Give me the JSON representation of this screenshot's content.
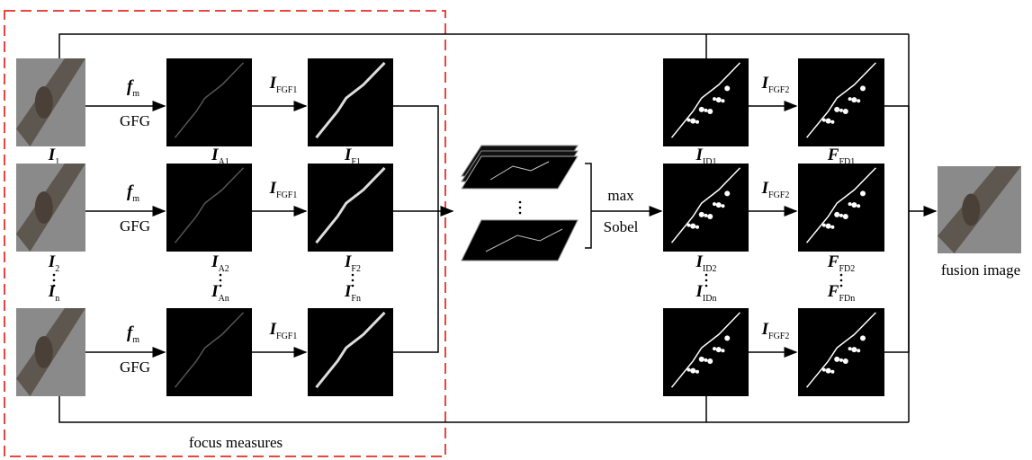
{
  "inputs": [
    {
      "main": "I",
      "sub": "1"
    },
    {
      "main": "I",
      "sub": "2"
    },
    {
      "main": "I",
      "sub": "n"
    }
  ],
  "operator": {
    "main": "f",
    "sub": "m",
    "name": "GFG"
  },
  "activity_maps": [
    {
      "main": "I",
      "sub": "A1"
    },
    {
      "main": "I",
      "sub": "A2"
    },
    {
      "main": "I",
      "sub": "An"
    }
  ],
  "filter1": {
    "main": "I",
    "sub": "FGF1"
  },
  "focus_maps": [
    {
      "main": "I",
      "sub": "F1"
    },
    {
      "main": "I",
      "sub": "F2"
    },
    {
      "main": "I",
      "sub": "Fn"
    }
  ],
  "focus_region_label": "focus measures",
  "decision": {
    "operations": [
      "max",
      "Sobel"
    ]
  },
  "decision_maps": [
    {
      "main": "I",
      "sub": "ID1"
    },
    {
      "main": "I",
      "sub": "ID2"
    },
    {
      "main": "I",
      "sub": "IDn"
    }
  ],
  "filter2": {
    "main": "I",
    "sub": "FGF2"
  },
  "final_maps": [
    {
      "main": "F",
      "sub": "FD1"
    },
    {
      "main": "F",
      "sub": "FD2"
    },
    {
      "main": "F",
      "sub": "FDn"
    }
  ],
  "output": "fusion image"
}
